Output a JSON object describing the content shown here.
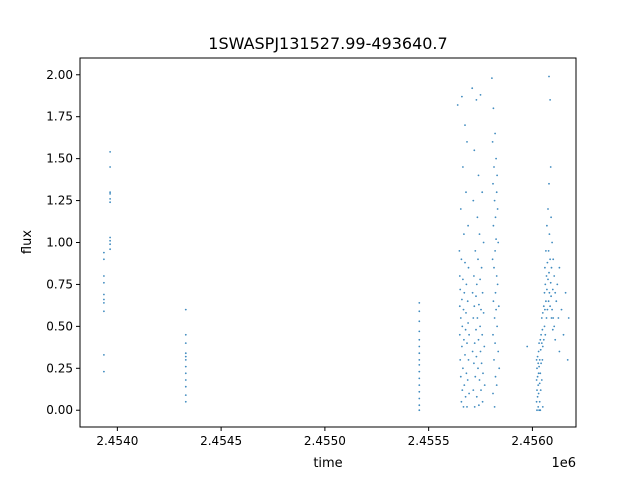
{
  "chart_data": {
    "type": "scatter",
    "title": "1SWASPJ131527.99-493640.7",
    "xlabel": "time",
    "ylabel": "flux",
    "x_offset_label": "1e6",
    "xlim": [
      2453820,
      2456210
    ],
    "ylim": [
      -0.1,
      2.1
    ],
    "xticks": [
      2454000,
      2454500,
      2455000,
      2455500,
      2456000
    ],
    "xtick_labels": [
      "2.4540",
      "2.4545",
      "2.4550",
      "2.4555",
      "2.4560"
    ],
    "yticks": [
      0,
      0.25,
      0.5,
      0.75,
      1.0,
      1.25,
      1.5,
      1.75,
      2.0
    ],
    "ytick_labels": [
      "0.00",
      "0.25",
      "0.50",
      "0.75",
      "1.00",
      "1.25",
      "1.50",
      "1.75",
      "2.00"
    ],
    "grid": false,
    "color": "#1f77b4",
    "points": [
      [
        2453935,
        0.94
      ],
      [
        2453935,
        0.9
      ],
      [
        2453935,
        0.8
      ],
      [
        2453935,
        0.76
      ],
      [
        2453935,
        0.69
      ],
      [
        2453935,
        0.66
      ],
      [
        2453935,
        0.64
      ],
      [
        2453935,
        0.59
      ],
      [
        2453935,
        0.33
      ],
      [
        2453935,
        0.23
      ],
      [
        2453965,
        1.54
      ],
      [
        2453965,
        1.45
      ],
      [
        2453965,
        1.3
      ],
      [
        2453965,
        1.29
      ],
      [
        2453965,
        1.26
      ],
      [
        2453965,
        1.24
      ],
      [
        2453965,
        1.03
      ],
      [
        2453965,
        1.01
      ],
      [
        2453965,
        0.99
      ],
      [
        2453965,
        0.96
      ],
      [
        2454330,
        0.6
      ],
      [
        2454330,
        0.45
      ],
      [
        2454330,
        0.4
      ],
      [
        2454330,
        0.34
      ],
      [
        2454330,
        0.32
      ],
      [
        2454330,
        0.3
      ],
      [
        2454330,
        0.26
      ],
      [
        2454330,
        0.22
      ],
      [
        2454330,
        0.18
      ],
      [
        2454330,
        0.14
      ],
      [
        2454330,
        0.09
      ],
      [
        2454330,
        0.05
      ],
      [
        2455455,
        0.64
      ],
      [
        2455455,
        0.59
      ],
      [
        2455455,
        0.53
      ],
      [
        2455455,
        0.47
      ],
      [
        2455455,
        0.42
      ],
      [
        2455455,
        0.38
      ],
      [
        2455455,
        0.34
      ],
      [
        2455455,
        0.3
      ],
      [
        2455455,
        0.27
      ],
      [
        2455455,
        0.23
      ],
      [
        2455455,
        0.19
      ],
      [
        2455455,
        0.15
      ],
      [
        2455455,
        0.11
      ],
      [
        2455455,
        0.07
      ],
      [
        2455455,
        0.03
      ],
      [
        2455455,
        0.0
      ],
      [
        2455640,
        1.82
      ],
      [
        2455648,
        0.95
      ],
      [
        2455650,
        0.8
      ],
      [
        2455650,
        0.62
      ],
      [
        2455650,
        0.45
      ],
      [
        2455652,
        0.3
      ],
      [
        2455652,
        0.72
      ],
      [
        2455655,
        1.2
      ],
      [
        2455655,
        0.55
      ],
      [
        2455655,
        0.2
      ],
      [
        2455658,
        0.05
      ],
      [
        2455658,
        0.9
      ],
      [
        2455660,
        1.87
      ],
      [
        2455660,
        0.66
      ],
      [
        2455660,
        0.38
      ],
      [
        2455662,
        0.12
      ],
      [
        2455662,
        0.5
      ],
      [
        2455665,
        1.45
      ],
      [
        2455665,
        0.78
      ],
      [
        2455665,
        0.25
      ],
      [
        2455668,
        0.02
      ],
      [
        2455668,
        0.6
      ],
      [
        2455670,
        1.05
      ],
      [
        2455670,
        0.42
      ],
      [
        2455672,
        0.15
      ],
      [
        2455672,
        0.7
      ],
      [
        2455675,
        1.7
      ],
      [
        2455675,
        0.33
      ],
      [
        2455675,
        0.88
      ],
      [
        2455678,
        0.48
      ],
      [
        2455678,
        0.08
      ],
      [
        2455680,
        1.3
      ],
      [
        2455680,
        0.58
      ],
      [
        2455682,
        0.22
      ],
      [
        2455682,
        0.75
      ],
      [
        2455685,
        0.02
      ],
      [
        2455685,
        1.6
      ],
      [
        2455685,
        0.4
      ],
      [
        2455688,
        0.65
      ],
      [
        2455688,
        0.18
      ],
      [
        2455690,
        1.1
      ],
      [
        2455690,
        0.52
      ],
      [
        2455692,
        0.3
      ],
      [
        2455692,
        0.85
      ],
      [
        2455695,
        0.1
      ],
      [
        2455695,
        0.45
      ],
      [
        2455710,
        1.92
      ],
      [
        2455712,
        0.7
      ],
      [
        2455712,
        0.35
      ],
      [
        2455715,
        1.25
      ],
      [
        2455715,
        0.55
      ],
      [
        2455715,
        0.12
      ],
      [
        2455718,
        0.8
      ],
      [
        2455718,
        0.28
      ],
      [
        2455720,
        1.55
      ],
      [
        2455720,
        0.62
      ],
      [
        2455722,
        0.02
      ],
      [
        2455722,
        0.4
      ],
      [
        2455725,
        0.95
      ],
      [
        2455725,
        0.2
      ],
      [
        2455728,
        0.68
      ],
      [
        2455728,
        0.48
      ],
      [
        2455730,
        1.85
      ],
      [
        2455730,
        0.32
      ],
      [
        2455732,
        0.08
      ],
      [
        2455732,
        0.75
      ],
      [
        2455735,
        1.15
      ],
      [
        2455735,
        0.55
      ],
      [
        2455738,
        0.25
      ],
      [
        2455738,
        0.9
      ],
      [
        2455740,
        1.4
      ],
      [
        2455740,
        0.42
      ],
      [
        2455742,
        0.03
      ],
      [
        2455742,
        0.63
      ],
      [
        2455745,
        1.05
      ],
      [
        2455745,
        0.18
      ],
      [
        2455748,
        0.5
      ],
      [
        2455748,
        0.78
      ],
      [
        2455750,
        1.88
      ],
      [
        2455750,
        0.35
      ],
      [
        2455752,
        0.12
      ],
      [
        2455752,
        0.6
      ],
      [
        2455755,
        0.85
      ],
      [
        2455755,
        0.28
      ],
      [
        2455758,
        1.3
      ],
      [
        2455758,
        0.45
      ],
      [
        2455760,
        0.05
      ],
      [
        2455760,
        0.7
      ],
      [
        2455762,
        0.22
      ],
      [
        2455765,
        0.58
      ],
      [
        2455765,
        1.0
      ],
      [
        2455768,
        0.38
      ],
      [
        2455770,
        0.15
      ],
      [
        2455805,
        1.98
      ],
      [
        2455808,
        1.6
      ],
      [
        2455808,
        0.9
      ],
      [
        2455810,
        1.35
      ],
      [
        2455810,
        0.45
      ],
      [
        2455810,
        0.1
      ],
      [
        2455812,
        1.8
      ],
      [
        2455812,
        1.1
      ],
      [
        2455812,
        0.65
      ],
      [
        2455815,
        1.45
      ],
      [
        2455815,
        0.85
      ],
      [
        2455815,
        0.3
      ],
      [
        2455818,
        1.25
      ],
      [
        2455818,
        0.02
      ],
      [
        2455818,
        0.55
      ],
      [
        2455820,
        1.65
      ],
      [
        2455820,
        0.95
      ],
      [
        2455820,
        0.4
      ],
      [
        2455822,
        1.15
      ],
      [
        2455822,
        0.7
      ],
      [
        2455822,
        0.2
      ],
      [
        2455825,
        1.5
      ],
      [
        2455825,
        1.02
      ],
      [
        2455825,
        0.6
      ],
      [
        2455828,
        1.3
      ],
      [
        2455828,
        0.8
      ],
      [
        2455828,
        0.15
      ],
      [
        2455830,
        1.4
      ],
      [
        2455830,
        0.5
      ],
      [
        2455832,
        1.2
      ],
      [
        2455832,
        0.75
      ],
      [
        2455835,
        0.35
      ],
      [
        2455835,
        1.0
      ],
      [
        2455838,
        0.62
      ],
      [
        2455840,
        0.25
      ],
      [
        2455975,
        0.38
      ],
      [
        2456020,
        0.3
      ],
      [
        2456020,
        0.18
      ],
      [
        2456020,
        0.05
      ],
      [
        2456022,
        0.25
      ],
      [
        2456022,
        0.12
      ],
      [
        2456022,
        0.0
      ],
      [
        2456025,
        0.32
      ],
      [
        2456025,
        0.2
      ],
      [
        2456025,
        0.08
      ],
      [
        2456028,
        0.28
      ],
      [
        2456028,
        0.15
      ],
      [
        2456028,
        0.02
      ],
      [
        2456030,
        0.35
      ],
      [
        2456030,
        0.22
      ],
      [
        2456030,
        0.1
      ],
      [
        2456032,
        0.4
      ],
      [
        2456032,
        0.26
      ],
      [
        2456032,
        0.0
      ],
      [
        2456035,
        0.3
      ],
      [
        2456035,
        0.16
      ],
      [
        2456035,
        0.05
      ],
      [
        2456038,
        0.42
      ],
      [
        2456038,
        0.22
      ],
      [
        2456038,
        0.0
      ],
      [
        2456040,
        0.36
      ],
      [
        2456040,
        0.12
      ],
      [
        2456042,
        0.45
      ],
      [
        2456042,
        0.28
      ],
      [
        2456045,
        0.4
      ],
      [
        2456045,
        0.18
      ],
      [
        2456045,
        0.55
      ],
      [
        2456048,
        0.48
      ],
      [
        2456048,
        0.3
      ],
      [
        2456050,
        0.58
      ],
      [
        2456050,
        0.38
      ],
      [
        2456050,
        0.02
      ],
      [
        2456055,
        0.62
      ],
      [
        2456055,
        0.42
      ],
      [
        2456058,
        0.7
      ],
      [
        2456058,
        0.5
      ],
      [
        2456060,
        0.85
      ],
      [
        2456060,
        0.6
      ],
      [
        2456062,
        0.75
      ],
      [
        2456062,
        0.45
      ],
      [
        2456065,
        0.95
      ],
      [
        2456065,
        0.65
      ],
      [
        2456068,
        0.8
      ],
      [
        2456068,
        0.55
      ],
      [
        2456070,
        1.1
      ],
      [
        2456070,
        0.72
      ],
      [
        2456072,
        0.88
      ],
      [
        2456072,
        0.6
      ],
      [
        2456075,
        1.2
      ],
      [
        2456075,
        0.78
      ],
      [
        2456078,
        0.95
      ],
      [
        2456078,
        0.65
      ],
      [
        2456080,
        1.99
      ],
      [
        2456080,
        1.35
      ],
      [
        2456080,
        0.82
      ],
      [
        2456082,
        1.05
      ],
      [
        2456082,
        0.7
      ],
      [
        2456085,
        1.85
      ],
      [
        2456085,
        0.9
      ],
      [
        2456085,
        0.62
      ],
      [
        2456088,
        1.45
      ],
      [
        2456088,
        0.76
      ],
      [
        2456090,
        1.15
      ],
      [
        2456090,
        0.68
      ],
      [
        2456092,
        0.85
      ],
      [
        2456092,
        0.55
      ],
      [
        2456095,
        1.0
      ],
      [
        2456095,
        0.6
      ],
      [
        2456098,
        0.72
      ],
      [
        2456098,
        0.48
      ],
      [
        2456100,
        0.9
      ],
      [
        2456100,
        0.55
      ],
      [
        2456105,
        0.8
      ],
      [
        2456105,
        0.5
      ],
      [
        2456110,
        0.7
      ],
      [
        2456110,
        0.42
      ],
      [
        2456115,
        0.65
      ],
      [
        2456120,
        0.75
      ],
      [
        2456125,
        0.55
      ],
      [
        2456130,
        0.85
      ],
      [
        2456130,
        0.35
      ],
      [
        2456140,
        0.6
      ],
      [
        2456150,
        0.45
      ],
      [
        2456160,
        0.7
      ],
      [
        2456170,
        0.3
      ],
      [
        2456175,
        0.55
      ]
    ]
  }
}
